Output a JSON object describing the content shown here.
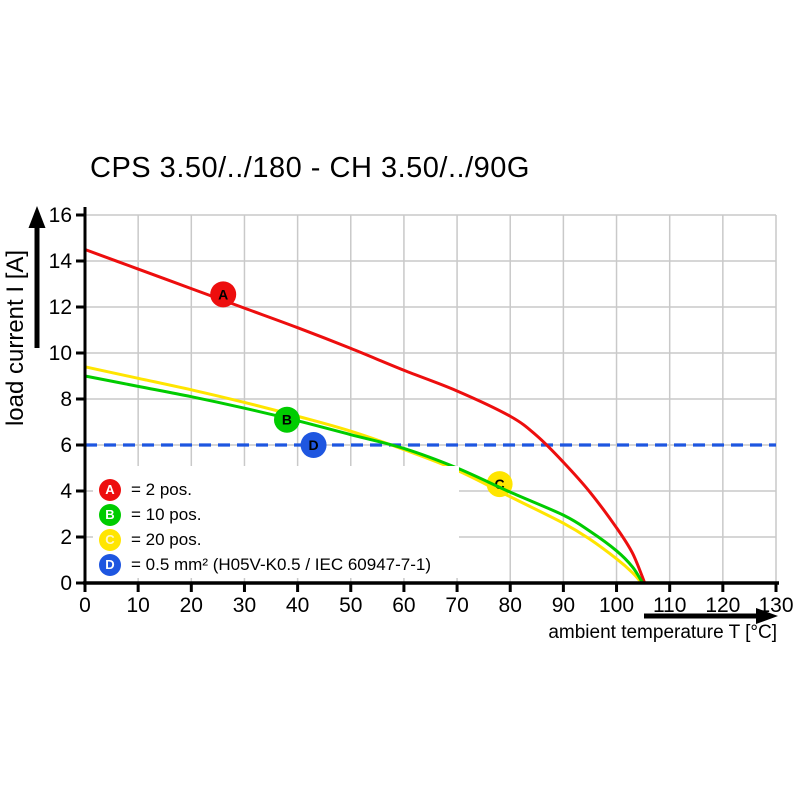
{
  "title": "CPS 3.50/../180 - CH 3.50/../90G",
  "axes": {
    "x": {
      "label": "ambient temperature T [°C]",
      "min": 0,
      "max": 130
    },
    "y": {
      "label": "load current I [A]",
      "min": 0,
      "max": 16
    }
  },
  "legend": {
    "items": [
      {
        "letter": "A",
        "color": "#ed0e0e",
        "letter_color": "#ffffff",
        "label": "= 2 pos."
      },
      {
        "letter": "B",
        "color": "#00cc00",
        "letter_color": "#ffffff",
        "label": "= 10 pos."
      },
      {
        "letter": "C",
        "color": "#ffe500",
        "letter_color": "#fdf6c8",
        "label": "= 20 pos."
      },
      {
        "letter": "D",
        "color": "#1e56e0",
        "letter_color": "#ffffff",
        "label": "= 0.5 mm² (H05V-K0.5 / IEC 60947-7-1)"
      }
    ]
  },
  "chart_data": {
    "type": "line",
    "title": "CPS 3.50/../180 - CH 3.50/../90G",
    "xlabel": "ambient temperature T [°C]",
    "ylabel": "load current I [A]",
    "xlim": [
      0,
      130
    ],
    "ylim": [
      0,
      16
    ],
    "x_ticks": [
      0,
      10,
      20,
      30,
      40,
      50,
      60,
      70,
      80,
      90,
      100,
      110,
      120,
      130
    ],
    "y_ticks": [
      0,
      2,
      4,
      6,
      8,
      10,
      12,
      14,
      16
    ],
    "grid": true,
    "grid_color": "#c9c9c9",
    "axis_color": "#000000",
    "legend_position": "inside-bottom-left",
    "series": [
      {
        "id": "D",
        "name": "0.5 mm² (H05V-K0.5 / IEC 60947-7-1)",
        "color": "#1e56e0",
        "style": "dashed",
        "points": [
          [
            0,
            6
          ],
          [
            130,
            6
          ]
        ],
        "marker": {
          "letter": "D",
          "x": 43,
          "y": 6,
          "letter_color": "#ffffff"
        }
      },
      {
        "id": "A",
        "name": "2 pos.",
        "color": "#ed0e0e",
        "style": "solid",
        "points": [
          [
            0,
            14.5
          ],
          [
            10,
            13.65
          ],
          [
            20,
            12.8
          ],
          [
            30,
            11.95
          ],
          [
            40,
            11.1
          ],
          [
            50,
            10.2
          ],
          [
            60,
            9.25
          ],
          [
            70,
            8.35
          ],
          [
            80,
            7.25
          ],
          [
            85,
            6.4
          ],
          [
            90,
            5.25
          ],
          [
            95,
            3.95
          ],
          [
            100,
            2.4
          ],
          [
            103,
            1.3
          ],
          [
            105.3,
            0
          ]
        ],
        "marker": {
          "letter": "A",
          "x": 26,
          "y": 12.55,
          "letter_color": "#ffffff"
        }
      },
      {
        "id": "C",
        "name": "20 pos.",
        "color": "#ffe500",
        "style": "solid",
        "marker_early": true,
        "points": [
          [
            0,
            9.4
          ],
          [
            10,
            8.9
          ],
          [
            20,
            8.4
          ],
          [
            30,
            7.85
          ],
          [
            40,
            7.25
          ],
          [
            50,
            6.6
          ],
          [
            60,
            5.8
          ],
          [
            70,
            4.9
          ],
          [
            80,
            3.75
          ],
          [
            90,
            2.6
          ],
          [
            95,
            1.9
          ],
          [
            100,
            1.05
          ],
          [
            103,
            0.45
          ],
          [
            104.7,
            0
          ]
        ],
        "marker": {
          "letter": "C",
          "x": 78,
          "y": 4.3,
          "letter_color": "#fdf6c8"
        }
      },
      {
        "id": "B",
        "name": "10 pos.",
        "color": "#00cc00",
        "style": "solid",
        "points": [
          [
            0,
            9.0
          ],
          [
            10,
            8.55
          ],
          [
            20,
            8.1
          ],
          [
            30,
            7.6
          ],
          [
            40,
            7.05
          ],
          [
            50,
            6.45
          ],
          [
            60,
            5.85
          ],
          [
            70,
            5.0
          ],
          [
            80,
            3.95
          ],
          [
            90,
            2.95
          ],
          [
            95,
            2.25
          ],
          [
            100,
            1.4
          ],
          [
            103,
            0.7
          ],
          [
            104.9,
            0
          ]
        ],
        "marker": {
          "letter": "B",
          "x": 38,
          "y": 7.1,
          "letter_color": "#ffffff"
        }
      }
    ]
  }
}
